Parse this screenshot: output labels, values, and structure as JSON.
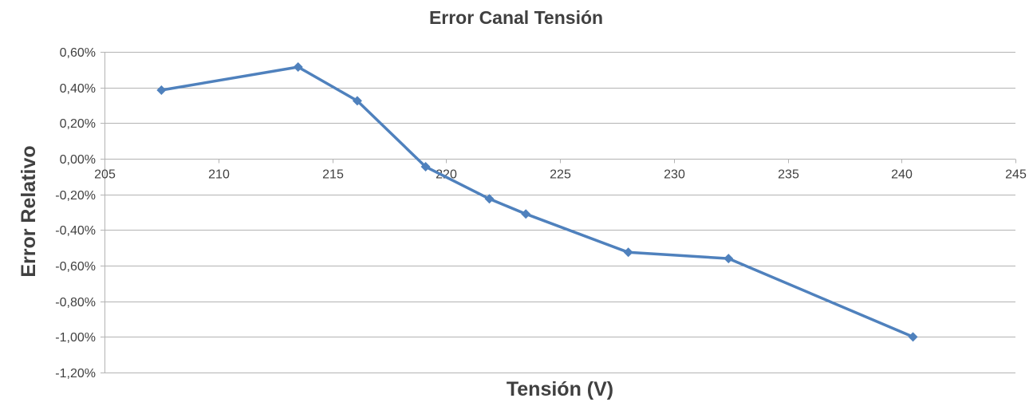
{
  "chart_data": {
    "type": "line",
    "title": "Error Canal Tensión",
    "xlabel": "Tensión (V)",
    "ylabel": "Error Relativo",
    "xlim": [
      205,
      245
    ],
    "ylim": [
      -1.2,
      0.6
    ],
    "x_ticks": [
      205,
      210,
      215,
      220,
      225,
      230,
      235,
      240,
      245
    ],
    "x_tick_labels": [
      "205",
      "210",
      "215",
      "220",
      "225",
      "230",
      "235",
      "240",
      "245"
    ],
    "y_ticks": [
      0.6,
      0.4,
      0.2,
      0.0,
      -0.2,
      -0.4,
      -0.6,
      -0.8,
      -1.0,
      -1.2
    ],
    "y_tick_labels": [
      "0,60%",
      "0,40%",
      "0,20%",
      "0,00%",
      "-0,20%",
      "-0,40%",
      "-0,60%",
      "-0,80%",
      "-1,00%",
      "-1,20%"
    ],
    "y_unit": "%",
    "grid": "horizontal",
    "legend": "none",
    "marker": "diamond",
    "series_color": "#4f81bd",
    "series": [
      {
        "x": [
          207.5,
          213.5,
          216.1,
          219.1,
          221.9,
          223.5,
          228.0,
          232.4,
          240.5
        ],
        "values": [
          0.385,
          0.515,
          0.325,
          -0.045,
          -0.225,
          -0.31,
          -0.525,
          -0.56,
          -1.0
        ]
      }
    ]
  }
}
